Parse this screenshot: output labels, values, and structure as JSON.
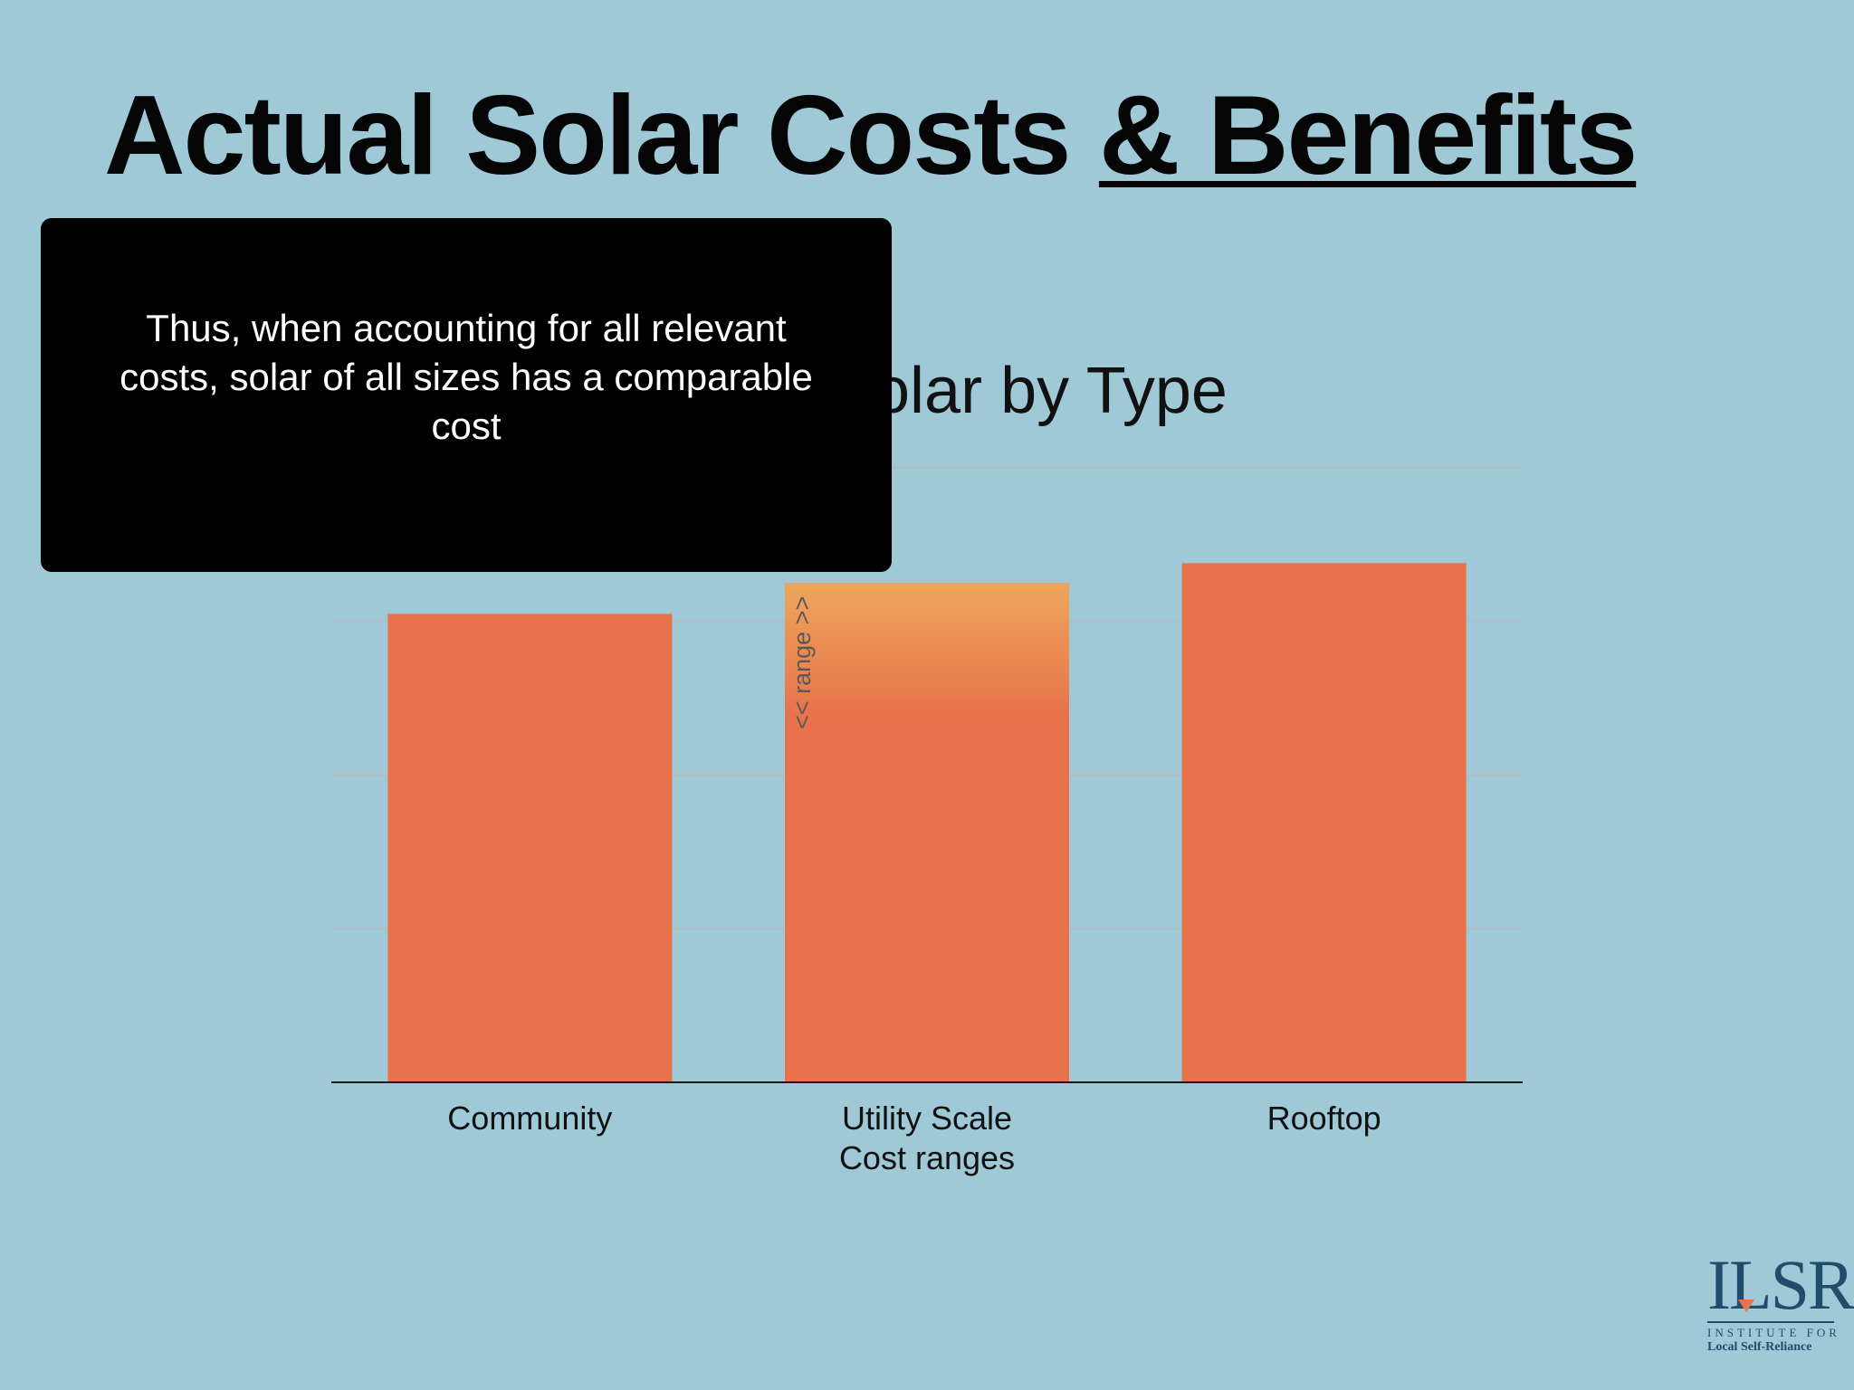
{
  "slide": {
    "title_part1": "Actual Solar Costs ",
    "title_part2": "& Benefits"
  },
  "overlay": {
    "text": "Thus, when accounting for all relevant costs, solar of all sizes has a comparable cost"
  },
  "logo": {
    "mark": "ILSR",
    "line1": "INSTITUTE FOR",
    "line2": "Local Self-Reliance"
  },
  "colors": {
    "background": "#9fc9d7",
    "bar": "#e8734a",
    "range_highlight": "#eda65c",
    "overlay": "#000000"
  },
  "chart_data": {
    "type": "bar",
    "title": "olar by Type",
    "categories": [
      "Community",
      "Utility Scale",
      "Rooftop"
    ],
    "values": [
      3.05,
      3.25,
      3.38
    ],
    "ylim": [
      0,
      4
    ],
    "grid": true,
    "y_tick_labels_shown": false,
    "annotations": {
      "bar_note": "<< range >>",
      "x_note": "Cost ranges"
    },
    "range_bar_index": 1,
    "range_top_value": 3.25,
    "range_bottom_value": 2.4
  }
}
